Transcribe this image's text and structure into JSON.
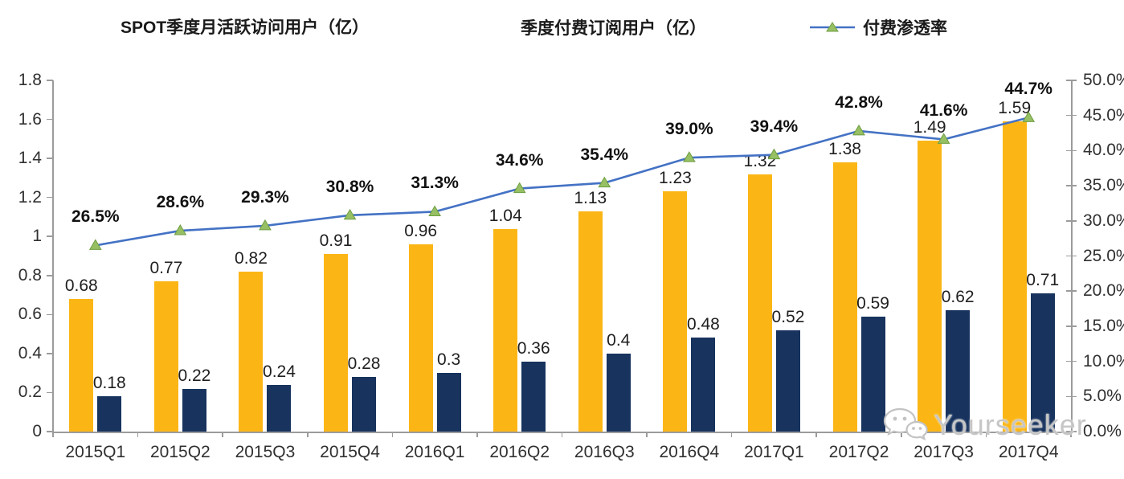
{
  "legend": {
    "items": [
      {
        "label": "SPOT季度月活跃访问用户（亿）",
        "swatch": "yellow-bar-swatch",
        "color": "#FBB616"
      },
      {
        "label": "季度付费订阅用户（亿）",
        "swatch": "navy-bar-swatch",
        "color": "#17335E"
      },
      {
        "label": "付费渗透率",
        "swatch": "line-marker-swatch",
        "color": "#4472C4",
        "marker_color": "#97BF63"
      }
    ]
  },
  "watermark": {
    "text": "Yourseeker",
    "icon": "wechat-icon",
    "color": "#C6C6C6"
  },
  "chart_data": {
    "type": "bar",
    "subtype": "grouped-bars-plus-line-dual-axis",
    "categories": [
      "2015Q1",
      "2015Q2",
      "2015Q3",
      "2015Q4",
      "2016Q1",
      "2016Q2",
      "2016Q3",
      "2016Q4",
      "2017Q1",
      "2017Q2",
      "2017Q3",
      "2017Q4"
    ],
    "series": [
      {
        "name": "SPOT季度月活跃访问用户（亿）",
        "type": "bar",
        "axis": "left",
        "color": "#FBB616",
        "values": [
          0.68,
          0.77,
          0.82,
          0.91,
          0.96,
          1.04,
          1.13,
          1.23,
          1.32,
          1.38,
          1.49,
          1.59
        ],
        "labels": [
          "0.68",
          "0.77",
          "0.82",
          "0.91",
          "0.96",
          "1.04",
          "1.13",
          "1.23",
          "1.32",
          "1.38",
          "1.49",
          "1.59"
        ]
      },
      {
        "name": "季度付费订阅用户（亿）",
        "type": "bar",
        "axis": "left",
        "color": "#17335E",
        "values": [
          0.18,
          0.22,
          0.24,
          0.28,
          0.3,
          0.36,
          0.4,
          0.48,
          0.52,
          0.59,
          0.62,
          0.71
        ],
        "labels": [
          "0.18",
          "0.22",
          "0.24",
          "0.28",
          "0.3",
          "0.36",
          "0.4",
          "0.48",
          "0.52",
          "0.59",
          "0.62",
          "0.71"
        ]
      },
      {
        "name": "付费渗透率",
        "type": "line",
        "axis": "right",
        "color": "#4472C4",
        "marker": "triangle",
        "marker_color": "#97BF63",
        "marker_stroke": "#6E9E43",
        "values": [
          26.5,
          28.6,
          29.3,
          30.8,
          31.3,
          34.6,
          35.4,
          39.0,
          39.4,
          42.8,
          41.6,
          44.7
        ],
        "labels": [
          "26.5%",
          "28.6%",
          "29.3%",
          "30.8%",
          "31.3%",
          "34.6%",
          "35.4%",
          "39.0%",
          "39.4%",
          "42.8%",
          "41.6%",
          "44.7%"
        ]
      }
    ],
    "left_axis": {
      "min": 0,
      "max": 1.8,
      "step": 0.2,
      "ticks": [
        "0",
        "0.2",
        "0.4",
        "0.6",
        "0.8",
        "1",
        "1.2",
        "1.4",
        "1.6",
        "1.8"
      ]
    },
    "right_axis": {
      "min": 0,
      "max": 50,
      "step": 5,
      "ticks": [
        "0.0%",
        "5.0%",
        "10.0%",
        "15.0%",
        "20.0%",
        "25.0%",
        "30.0%",
        "35.0%",
        "40.0%",
        "45.0%",
        "50.0%"
      ]
    },
    "grid": false,
    "legend_position": "top"
  }
}
